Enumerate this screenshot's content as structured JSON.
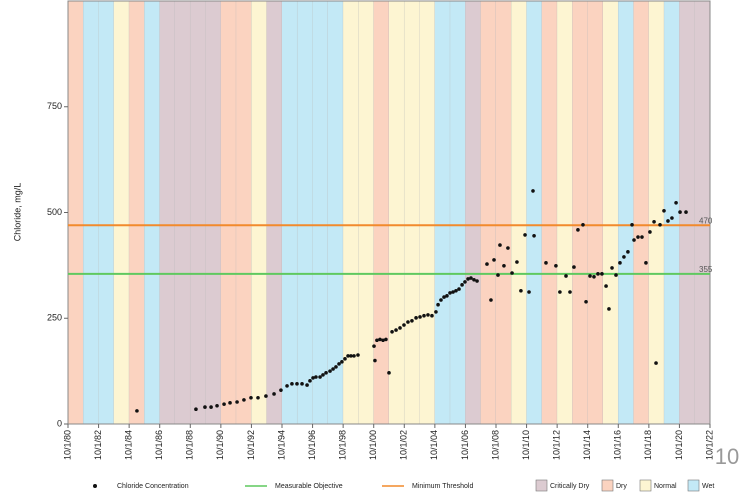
{
  "chart_data": {
    "type": "scatter",
    "y_label": "Chloride, mg/L",
    "xlim": [
      1980.75,
      2022.75
    ],
    "ylim": [
      0,
      1000
    ],
    "yticks": [
      0,
      250,
      500,
      750
    ],
    "xticks": [
      {
        "value": 1980.75,
        "label": "10/1/80"
      },
      {
        "value": 1982.75,
        "label": "10/1/82"
      },
      {
        "value": 1984.75,
        "label": "10/1/84"
      },
      {
        "value": 1986.75,
        "label": "10/1/86"
      },
      {
        "value": 1988.75,
        "label": "10/1/88"
      },
      {
        "value": 1990.75,
        "label": "10/1/90"
      },
      {
        "value": 1992.75,
        "label": "10/1/92"
      },
      {
        "value": 1994.75,
        "label": "10/1/94"
      },
      {
        "value": 1996.75,
        "label": "10/1/96"
      },
      {
        "value": 1998.75,
        "label": "10/1/98"
      },
      {
        "value": 2000.75,
        "label": "10/1/00"
      },
      {
        "value": 2002.75,
        "label": "10/1/02"
      },
      {
        "value": 2004.75,
        "label": "10/1/04"
      },
      {
        "value": 2006.75,
        "label": "10/1/06"
      },
      {
        "value": 2008.75,
        "label": "10/1/08"
      },
      {
        "value": 2010.75,
        "label": "10/1/10"
      },
      {
        "value": 2012.75,
        "label": "10/1/12"
      },
      {
        "value": 2014.75,
        "label": "10/1/14"
      },
      {
        "value": 2016.75,
        "label": "10/1/16"
      },
      {
        "value": 2018.75,
        "label": "10/1/18"
      },
      {
        "value": 2020.75,
        "label": "10/1/20"
      },
      {
        "value": 2022.75,
        "label": "10/1/22"
      }
    ],
    "series": [
      {
        "name": "Chloride Concentration",
        "color": "#111111",
        "x": [
          1985.26,
          1989.12,
          1989.71,
          1990.11,
          1990.5,
          1990.96,
          1991.35,
          1991.81,
          1992.26,
          1992.72,
          1993.18,
          1993.7,
          1994.23,
          1994.68,
          1995.08,
          1995.4,
          1995.73,
          1996.06,
          1996.39,
          1996.58,
          1996.78,
          1996.97,
          1997.24,
          1997.43,
          1997.63,
          1997.89,
          1998.09,
          1998.28,
          1998.48,
          1998.67,
          1998.87,
          1999.07,
          1999.26,
          1999.46,
          1999.72,
          2000.77,
          2000.83,
          2000.96,
          2001.16,
          2001.36,
          2001.55,
          2001.75,
          2001.95,
          2002.21,
          2002.47,
          2002.73,
          2002.99,
          2003.25,
          2003.52,
          2003.78,
          2004.04,
          2004.3,
          2004.56,
          2004.82,
          2004.96,
          2005.15,
          2005.35,
          2005.54,
          2005.74,
          2005.94,
          2006.13,
          2006.33,
          2006.53,
          2006.72,
          2006.92,
          2007.11,
          2007.31,
          2007.51,
          2008.16,
          2008.42,
          2008.62,
          2008.88,
          2009.01,
          2009.27,
          2009.53,
          2009.8,
          2010.12,
          2010.38,
          2010.65,
          2010.91,
          2011.17,
          2011.24,
          2012.02,
          2012.67,
          2012.93,
          2013.33,
          2013.59,
          2013.85,
          2014.11,
          2014.44,
          2014.64,
          2014.9,
          2015.16,
          2015.42,
          2015.68,
          2015.95,
          2016.14,
          2016.34,
          2016.6,
          2016.86,
          2017.12,
          2017.38,
          2017.65,
          2017.78,
          2018.04,
          2018.3,
          2018.56,
          2018.82,
          2019.09,
          2019.22,
          2019.48,
          2019.74,
          2020.0,
          2020.26,
          2020.53,
          2020.79,
          2021.18
        ],
        "values": [
          31,
          35,
          40,
          40,
          43,
          47,
          50,
          52,
          57,
          62,
          62,
          66,
          71,
          80,
          90,
          95,
          95,
          95,
          92,
          102,
          109,
          111,
          111,
          116,
          121,
          125,
          130,
          135,
          142,
          147,
          154,
          161,
          161,
          161,
          163,
          184,
          150,
          198,
          200,
          198,
          200,
          121,
          218,
          222,
          227,
          234,
          241,
          244,
          251,
          253,
          256,
          258,
          256,
          265,
          282,
          293,
          300,
          303,
          310,
          312,
          315,
          319,
          329,
          336,
          343,
          345,
          341,
          338,
          378,
          293,
          388,
          352,
          423,
          374,
          416,
          357,
          383,
          315,
          447,
          312,
          551,
          445,
          381,
          374,
          312,
          350,
          312,
          371,
          459,
          471,
          289,
          350,
          348,
          355,
          355,
          326,
          272,
          369,
          352,
          381,
          395,
          407,
          471,
          435,
          442,
          442,
          381,
          454,
          478,
          144,
          471,
          504,
          480,
          487,
          523,
          501,
          501
        ]
      }
    ],
    "reference_lines": [
      {
        "name": "Measurable Objective",
        "value": 355,
        "color": "#5fc95f"
      },
      {
        "name": "Minimum Threshold",
        "value": 470,
        "color": "#f28a2c"
      }
    ],
    "year_types": {
      "names": [
        "Critically Dry",
        "Dry",
        "Normal",
        "Wet"
      ],
      "colors": [
        "#dccbd1",
        "#fbd3c0",
        "#fdf5d2",
        "#c3e9f6"
      ]
    },
    "water_year_types": [
      "Dry",
      "Wet",
      "Wet",
      "Normal",
      "Dry",
      "Wet",
      "Critically Dry",
      "Critically Dry",
      "Critically Dry",
      "Critically Dry",
      "Dry",
      "Dry",
      "Normal",
      "Critically Dry",
      "Wet",
      "Wet",
      "Wet",
      "Wet",
      "Normal",
      "Normal",
      "Dry",
      "Normal",
      "Normal",
      "Normal",
      "Wet",
      "Wet",
      "Critically Dry",
      "Dry",
      "Dry",
      "Normal",
      "Wet",
      "Dry",
      "Normal",
      "Dry",
      "Dry",
      "Normal",
      "Wet",
      "Dry",
      "Normal",
      "Wet",
      "Critically Dry",
      "Critically Dry"
    ]
  },
  "page_number": "10"
}
